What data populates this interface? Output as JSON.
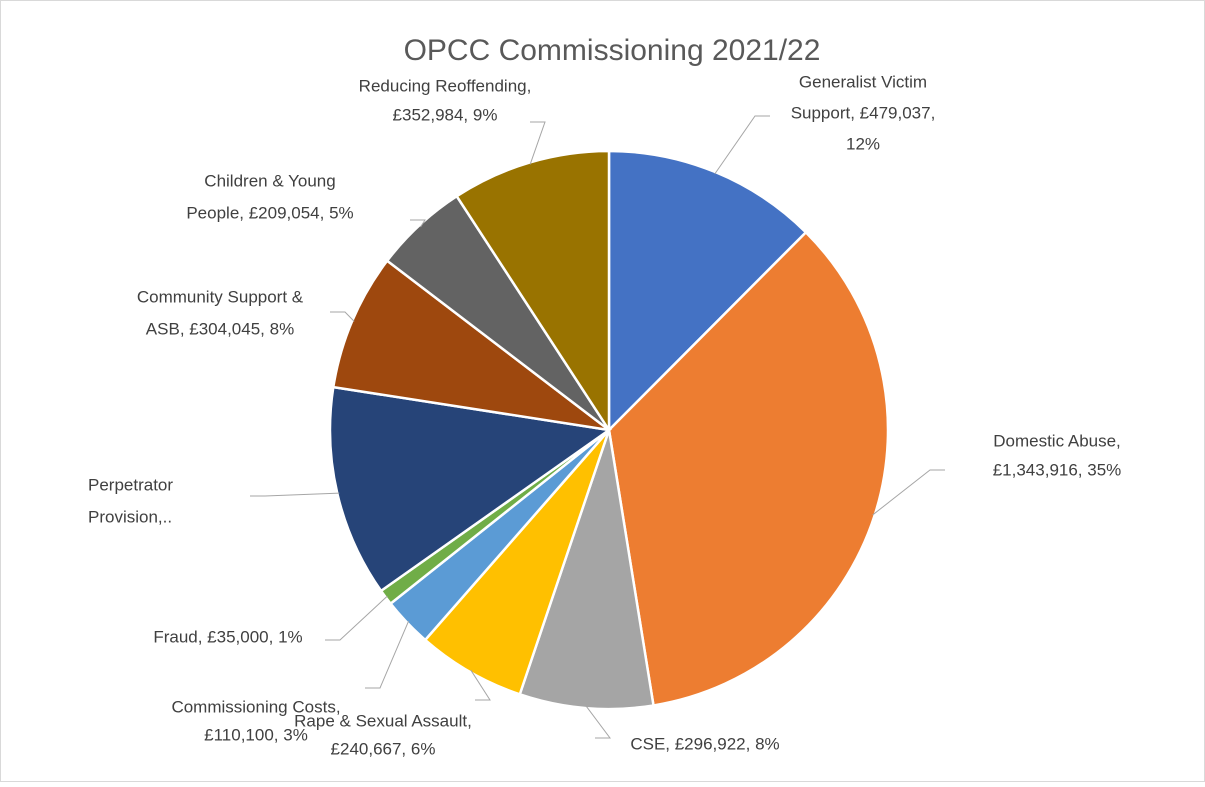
{
  "chart_data": {
    "type": "pie",
    "title": "OPCC Commissioning 2021/22",
    "categories": [
      "Generalist Victim Support",
      "Domestic Abuse",
      "CSE",
      "Rape & Sexual Assault",
      "Commissioning Costs",
      "Fraud",
      "Perpetrator Provision,..",
      "Community Support & ASB",
      "Children & Young People",
      "Reducing Reoffending"
    ],
    "values": [
      479037,
      1343916,
      296922,
      240667,
      110100,
      35000,
      470000,
      304045,
      209054,
      352984
    ],
    "labels": [
      [
        "Generalist Victim",
        "Support, £479,037,",
        "12%"
      ],
      [
        "Domestic Abuse,",
        "£1,343,916, 35%"
      ],
      [
        "CSE, £296,922, 8%"
      ],
      [
        "Rape & Sexual Assault,",
        "£240,667, 6%"
      ],
      [
        "Commissioning Costs,",
        "£110,100, 3%"
      ],
      [
        "Fraud, £35,000, 1%"
      ],
      [
        "Perpetrator",
        "Provision,.."
      ],
      [
        "Community Support &",
        "ASB, £304,045, 8%"
      ],
      [
        "Children & Young",
        "People, £209,054, 5%"
      ],
      [
        "Reducing Reoffending,",
        "£352,984, 9%"
      ]
    ],
    "colors": [
      "#4472c4",
      "#ed7d31",
      "#a5a5a5",
      "#ffc000",
      "#5b9bd5",
      "#70ad47",
      "#264478",
      "#9e480e",
      "#636363",
      "#997300"
    ]
  }
}
